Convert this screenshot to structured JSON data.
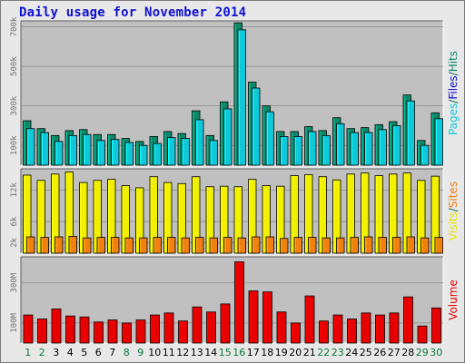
{
  "title": "Daily usage for November 2014",
  "colors": {
    "pages": "#0a8a6a",
    "files": "#10c8d8",
    "hits": "#106850",
    "visits": "#f0f000",
    "sites": "#f08010",
    "volume": "#e80000",
    "weekend_label": "#0a7a3a",
    "plot_bg": "#c0c0c0",
    "grid": "#8a8a8a"
  },
  "chart_data": [
    {
      "type": "bar",
      "title": "Daily usage for November 2014",
      "categories": [
        "1",
        "2",
        "3",
        "4",
        "5",
        "6",
        "7",
        "8",
        "9",
        "10",
        "11",
        "12",
        "13",
        "14",
        "15",
        "16",
        "17",
        "18",
        "19",
        "20",
        "21",
        "22",
        "23",
        "24",
        "25",
        "26",
        "27",
        "28",
        "29",
        "30"
      ],
      "weekend_days": [
        "1",
        "2",
        "8",
        "9",
        "15",
        "16",
        "22",
        "23",
        "29",
        "30"
      ],
      "ylim": [
        0,
        730000
      ],
      "y_ticks": [
        {
          "value": 100000,
          "label": "100k"
        },
        {
          "value": 300000,
          "label": "300k"
        },
        {
          "value": 500000,
          "label": "500k"
        },
        {
          "value": 700000,
          "label": "700k"
        }
      ],
      "right_label": [
        {
          "text": "Pages",
          "color": "#10c8d8"
        },
        {
          "text": "/",
          "color": "#106850"
        },
        {
          "text": "Files",
          "color": "#1010d0"
        },
        {
          "text": "/",
          "color": "#106850"
        },
        {
          "text": "Hits",
          "color": "#0a8a6a"
        }
      ],
      "series": [
        {
          "name": "Hits",
          "color": "#0a8a6a",
          "values": [
            225000,
            185000,
            150000,
            175000,
            180000,
            155000,
            155000,
            135000,
            120000,
            145000,
            170000,
            160000,
            275000,
            150000,
            320000,
            720000,
            420000,
            300000,
            170000,
            170000,
            195000,
            175000,
            240000,
            185000,
            190000,
            205000,
            220000,
            355000,
            125000,
            265000
          ]
        },
        {
          "name": "Files",
          "color": "#10c8d8",
          "values": [
            185000,
            165000,
            120000,
            150000,
            155000,
            125000,
            130000,
            115000,
            100000,
            110000,
            140000,
            135000,
            230000,
            125000,
            285000,
            685000,
            390000,
            270000,
            145000,
            145000,
            170000,
            150000,
            210000,
            165000,
            165000,
            180000,
            200000,
            325000,
            100000,
            235000
          ]
        }
      ]
    },
    {
      "type": "bar",
      "categories": [
        "1",
        "2",
        "3",
        "4",
        "5",
        "6",
        "7",
        "8",
        "9",
        "10",
        "11",
        "12",
        "13",
        "14",
        "15",
        "16",
        "17",
        "18",
        "19",
        "20",
        "21",
        "22",
        "23",
        "24",
        "25",
        "26",
        "27",
        "28",
        "29",
        "30"
      ],
      "ylim": [
        0,
        16000
      ],
      "y_ticks": [
        {
          "value": 2000,
          "label": "2k"
        },
        {
          "value": 6000,
          "label": "6k"
        },
        {
          "value": 12000,
          "label": "12k"
        }
      ],
      "right_label": [
        {
          "text": "Visits",
          "color": "#e8e800"
        },
        {
          "text": "/",
          "color": "#106850"
        },
        {
          "text": "Sites",
          "color": "#f08010"
        }
      ],
      "series": [
        {
          "name": "Visits",
          "color": "#f0f000",
          "values": [
            14800,
            13800,
            15000,
            15400,
            13400,
            13800,
            14000,
            12800,
            12400,
            14500,
            13400,
            13200,
            14500,
            12600,
            12700,
            12600,
            14000,
            12800,
            12700,
            14700,
            14900,
            14500,
            13900,
            15000,
            15200,
            14700,
            15000,
            15200,
            13800,
            14600
          ]
        },
        {
          "name": "Sites",
          "color": "#f08010",
          "values": [
            3100,
            3000,
            3100,
            3200,
            2900,
            3000,
            3000,
            2900,
            2900,
            3000,
            3000,
            2900,
            3000,
            2900,
            3000,
            2900,
            3100,
            3100,
            2800,
            3000,
            3000,
            2900,
            2900,
            3000,
            3100,
            3000,
            3000,
            3100,
            2900,
            3000
          ]
        }
      ]
    },
    {
      "type": "bar",
      "categories": [
        "1",
        "2",
        "3",
        "4",
        "5",
        "6",
        "7",
        "8",
        "9",
        "10",
        "11",
        "12",
        "13",
        "14",
        "15",
        "16",
        "17",
        "18",
        "19",
        "20",
        "21",
        "22",
        "23",
        "24",
        "25",
        "26",
        "27",
        "28",
        "29",
        "30"
      ],
      "ylim": [
        0,
        430
      ],
      "y_ticks": [
        {
          "value": 100,
          "label": "100M"
        },
        {
          "value": 300,
          "label": "300M"
        }
      ],
      "right_label": [
        {
          "text": "Volume",
          "color": "#e80000"
        }
      ],
      "series": [
        {
          "name": "Volume",
          "color": "#e80000",
          "unit": "M",
          "values": [
            140,
            120,
            170,
            135,
            130,
            105,
            115,
            100,
            115,
            140,
            150,
            110,
            180,
            155,
            195,
            405,
            260,
            255,
            155,
            100,
            235,
            110,
            140,
            120,
            150,
            140,
            150,
            230,
            85,
            175
          ]
        }
      ]
    }
  ]
}
